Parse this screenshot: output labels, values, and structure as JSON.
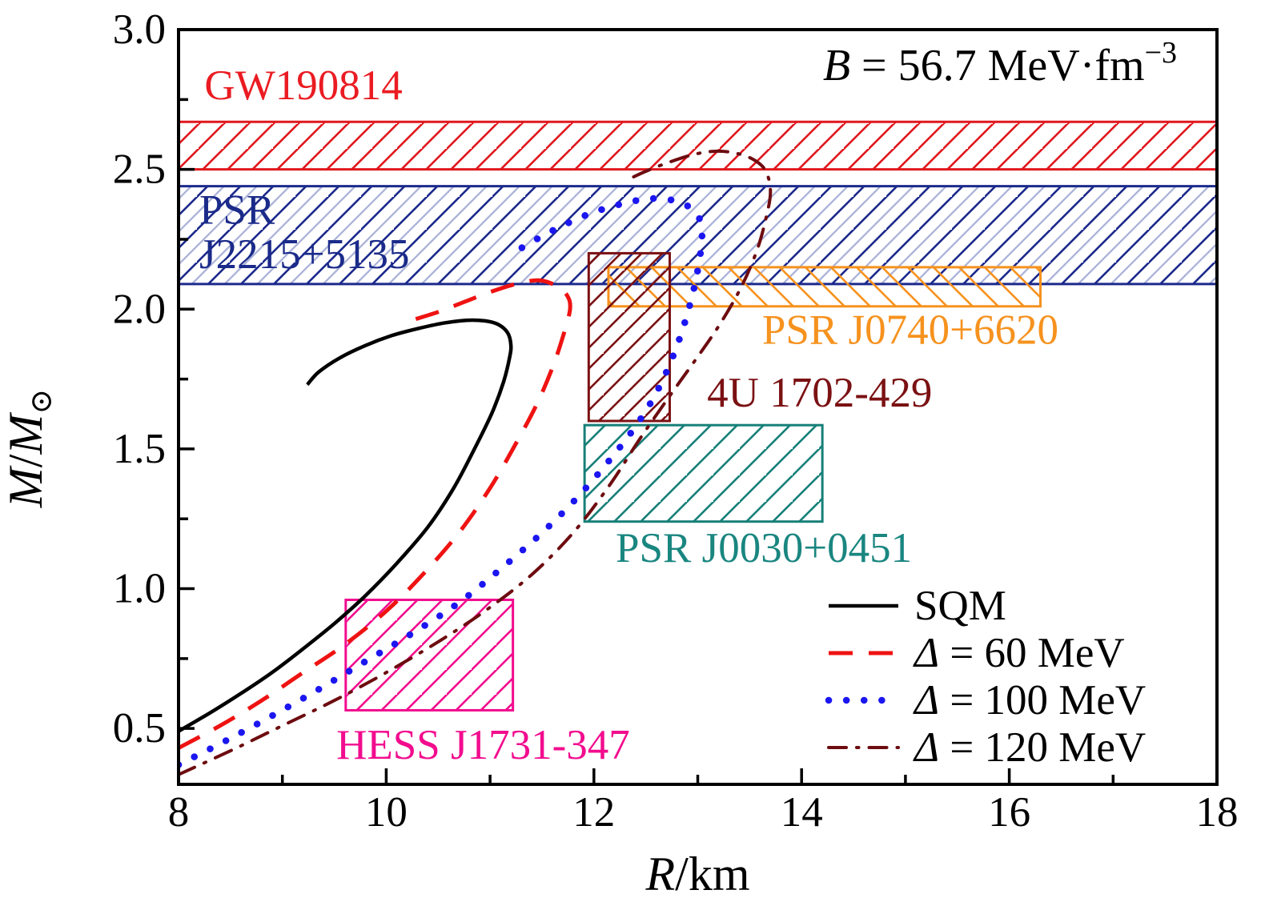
{
  "figure": {
    "background": "#ffffff",
    "frame_color": "#000000"
  },
  "annotation": {
    "var": "B",
    "rest": " = 56.7 MeV·fm",
    "sup": "−3",
    "color": "#000000"
  },
  "chart_data": {
    "type": "line",
    "title": "",
    "xlabel": "R/km",
    "ylabel": "M/M⊙",
    "xlim": [
      8,
      18
    ],
    "ylim": [
      0.3,
      3.0
    ],
    "grid": false,
    "legend_position": "lower right",
    "x_axis": {
      "label_var": "R",
      "label_rest": "/km",
      "major_ticks": [
        {
          "v": 8,
          "label": "8"
        },
        {
          "v": 10,
          "label": "10"
        },
        {
          "v": 12,
          "label": "12"
        },
        {
          "v": 14,
          "label": "14"
        },
        {
          "v": 16,
          "label": "16"
        },
        {
          "v": 18,
          "label": "18"
        }
      ],
      "minor_ticks": [
        9,
        11,
        13,
        15,
        17
      ]
    },
    "y_axis": {
      "label_num": "M",
      "label_slash": "/",
      "label_den": "M",
      "label_sub": "⊙",
      "major_ticks": [
        {
          "v": 0.5,
          "label": "0.5"
        },
        {
          "v": 1.0,
          "label": "1.0"
        },
        {
          "v": 1.5,
          "label": "1.5"
        },
        {
          "v": 2.0,
          "label": "2.0"
        },
        {
          "v": 2.5,
          "label": "2.5"
        },
        {
          "v": 3.0,
          "label": "3.0"
        }
      ],
      "minor_ticks": [
        0.75,
        1.25,
        1.75,
        2.25,
        2.75
      ]
    },
    "series": [
      {
        "id": "sqm",
        "sym": "",
        "rest": "SQM",
        "color": "#000000",
        "style": "solid",
        "points": [
          [
            8.0,
            0.49
          ],
          [
            8.3,
            0.555
          ],
          [
            8.6,
            0.625
          ],
          [
            8.9,
            0.7
          ],
          [
            9.2,
            0.785
          ],
          [
            9.5,
            0.875
          ],
          [
            9.8,
            0.975
          ],
          [
            10.1,
            1.09
          ],
          [
            10.4,
            1.22
          ],
          [
            10.65,
            1.36
          ],
          [
            10.85,
            1.5
          ],
          [
            11.02,
            1.63
          ],
          [
            11.13,
            1.74
          ],
          [
            11.19,
            1.83
          ],
          [
            11.2,
            1.875
          ],
          [
            11.17,
            1.915
          ],
          [
            11.08,
            1.945
          ],
          [
            10.95,
            1.958
          ],
          [
            10.77,
            1.96
          ],
          [
            10.55,
            1.95
          ],
          [
            10.3,
            1.93
          ],
          [
            10.05,
            1.905
          ],
          [
            9.8,
            1.87
          ],
          [
            9.55,
            1.825
          ],
          [
            9.35,
            1.775
          ],
          [
            9.24,
            1.73
          ]
        ]
      },
      {
        "id": "delta60",
        "sym": "Δ",
        "rest": " = 60 MeV",
        "color": "#ee1312",
        "style": "dashed",
        "points": [
          [
            8.0,
            0.43
          ],
          [
            8.4,
            0.51
          ],
          [
            8.8,
            0.6
          ],
          [
            9.2,
            0.7
          ],
          [
            9.6,
            0.8
          ],
          [
            10.0,
            0.92
          ],
          [
            10.35,
            1.05
          ],
          [
            10.7,
            1.2
          ],
          [
            11.0,
            1.36
          ],
          [
            11.25,
            1.52
          ],
          [
            11.45,
            1.66
          ],
          [
            11.6,
            1.79
          ],
          [
            11.7,
            1.9
          ],
          [
            11.77,
            2.0
          ],
          [
            11.74,
            2.05
          ],
          [
            11.63,
            2.085
          ],
          [
            11.47,
            2.103
          ],
          [
            11.28,
            2.093
          ],
          [
            11.03,
            2.065
          ],
          [
            10.78,
            2.03
          ],
          [
            10.5,
            1.99
          ],
          [
            10.2,
            1.955
          ]
        ]
      },
      {
        "id": "delta100",
        "sym": "Δ",
        "rest": " = 100 MeV",
        "color": "#1b16f0",
        "style": "dotted",
        "points": [
          [
            8.0,
            0.37
          ],
          [
            8.45,
            0.455
          ],
          [
            8.9,
            0.545
          ],
          [
            9.35,
            0.64
          ],
          [
            9.8,
            0.74
          ],
          [
            10.25,
            0.84
          ],
          [
            10.7,
            0.95
          ],
          [
            11.1,
            1.07
          ],
          [
            11.5,
            1.2
          ],
          [
            11.85,
            1.33
          ],
          [
            12.15,
            1.46
          ],
          [
            12.4,
            1.58
          ],
          [
            12.6,
            1.7
          ],
          [
            12.76,
            1.83
          ],
          [
            12.89,
            1.97
          ],
          [
            12.99,
            2.12
          ],
          [
            13.04,
            2.25
          ],
          [
            13.02,
            2.32
          ],
          [
            12.92,
            2.365
          ],
          [
            12.75,
            2.39
          ],
          [
            12.53,
            2.395
          ],
          [
            12.25,
            2.375
          ],
          [
            11.95,
            2.34
          ],
          [
            11.65,
            2.29
          ],
          [
            11.4,
            2.24
          ],
          [
            11.22,
            2.2
          ]
        ]
      },
      {
        "id": "delta120",
        "sym": "Δ",
        "rest": " = 120 MeV",
        "color": "#6d0c10",
        "style": "dashdot",
        "points": [
          [
            8.0,
            0.335
          ],
          [
            8.5,
            0.42
          ],
          [
            9.0,
            0.51
          ],
          [
            9.5,
            0.6
          ],
          [
            10.0,
            0.7
          ],
          [
            10.5,
            0.81
          ],
          [
            10.95,
            0.92
          ],
          [
            11.4,
            1.05
          ],
          [
            11.8,
            1.2
          ],
          [
            12.15,
            1.37
          ],
          [
            12.45,
            1.54
          ],
          [
            12.75,
            1.7
          ],
          [
            13.0,
            1.83
          ],
          [
            13.22,
            1.95
          ],
          [
            13.42,
            2.08
          ],
          [
            13.57,
            2.21
          ],
          [
            13.66,
            2.33
          ],
          [
            13.7,
            2.42
          ],
          [
            13.66,
            2.49
          ],
          [
            13.56,
            2.53
          ],
          [
            13.4,
            2.555
          ],
          [
            13.2,
            2.565
          ],
          [
            12.98,
            2.555
          ],
          [
            12.72,
            2.525
          ],
          [
            12.48,
            2.49
          ],
          [
            12.31,
            2.46
          ]
        ]
      }
    ],
    "regions": [
      {
        "id": "gw190814",
        "kind": "band",
        "y": [
          2.5,
          2.67
        ],
        "border": "#e0181e",
        "hatch": {
          "dir": "fwd",
          "color": "#e0181e",
          "gap": 31,
          "lw": 2.6
        },
        "label": {
          "lines": [
            "GW190814"
          ],
          "color": "#ea1c22",
          "x": 8.25,
          "y": 2.8,
          "line_dm": 0.16
        }
      },
      {
        "id": "psr-j2215-5135",
        "kind": "band",
        "y": [
          2.09,
          2.44
        ],
        "border": "#1c2a8c",
        "hatch": {
          "dir": "fwd",
          "color": "#1c2a8c",
          "color2": "#aab2d8",
          "gap": 41,
          "lw": 2.6
        },
        "label": {
          "lines": [
            "PSR",
            "J2215+5135"
          ],
          "color": "#1b2b8a",
          "x": 8.2,
          "y": 2.355,
          "line_dm": 0.16
        }
      },
      {
        "id": "psr-j0740-6620",
        "kind": "box",
        "x": [
          12.14,
          16.3
        ],
        "y": [
          2.01,
          2.15
        ],
        "border": "#f6921e",
        "hatch": {
          "dir": "back",
          "color": "#f6921e",
          "gap": 32,
          "lw": 2.6
        },
        "label": {
          "lines": [
            "PSR J0740+6620"
          ],
          "color": "#f6921e",
          "x": 13.62,
          "y": 1.925,
          "line_dm": 0.16
        }
      },
      {
        "id": "4u-1702-429",
        "kind": "box",
        "x": [
          11.95,
          12.73
        ],
        "y": [
          1.6,
          2.2
        ],
        "border": "#7b1113",
        "hatch": {
          "dir": "fwd",
          "color": "#7b1113",
          "gap": 26,
          "lw": 2.6
        },
        "label": {
          "lines": [
            "4U 1702-429"
          ],
          "color": "#7b1113",
          "x": 13.09,
          "y": 1.7,
          "line_dm": 0.16
        }
      },
      {
        "id": "psr-j0030-0451",
        "kind": "box",
        "x": [
          11.91,
          14.2
        ],
        "y": [
          1.24,
          1.585
        ],
        "border": "#178079",
        "hatch": {
          "dir": "fwd",
          "color": "#178079",
          "gap": 33,
          "lw": 2.6
        },
        "label": {
          "lines": [
            "PSR J0030+0451"
          ],
          "color": "#1a8680",
          "x": 12.21,
          "y": 1.145,
          "line_dm": 0.16
        }
      },
      {
        "id": "hess-j1731-347",
        "kind": "box",
        "x": [
          9.61,
          11.22
        ],
        "y": [
          0.565,
          0.96
        ],
        "border": "#f20c8e",
        "hatch": {
          "dir": "fwd",
          "color": "#f20c8e",
          "gap": 31,
          "lw": 2.6
        },
        "label": {
          "lines": [
            "HESS J1731-347"
          ],
          "color": "#f20c8e",
          "x": 9.52,
          "y": 0.44,
          "line_dm": 0.16
        }
      }
    ]
  }
}
